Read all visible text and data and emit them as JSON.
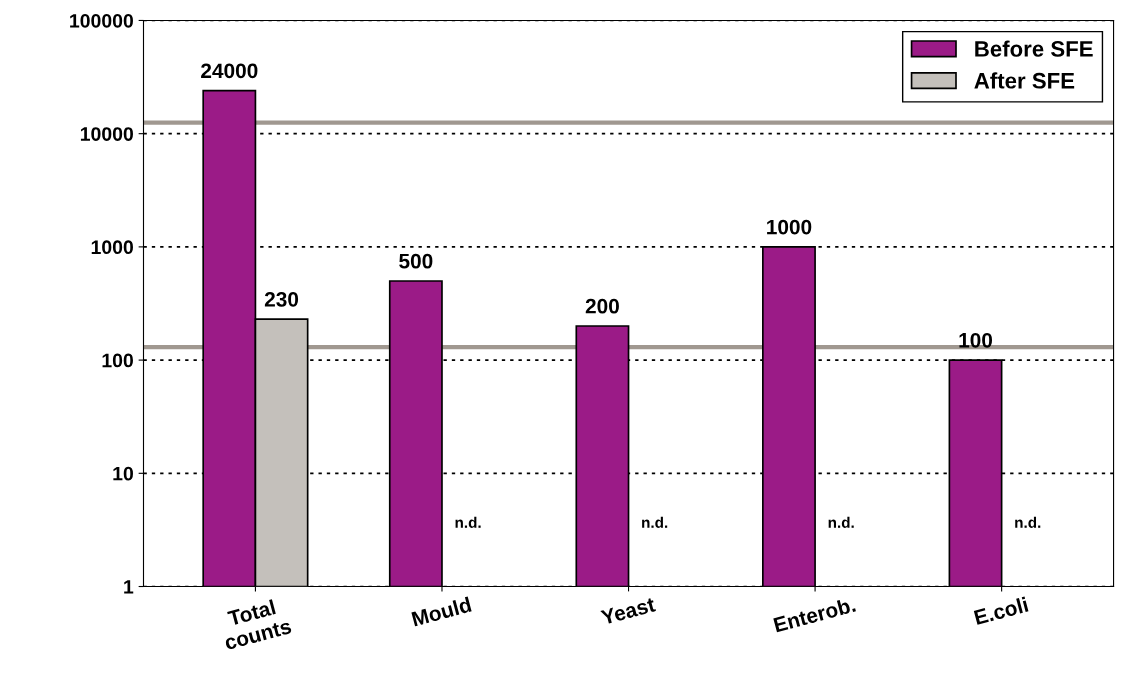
{
  "chart_data": {
    "type": "bar",
    "categories": [
      "Total\ncounts",
      "Mould",
      "Yeast",
      "Enterob.",
      "E.coli"
    ],
    "series": [
      {
        "name": "Before SFE",
        "color": "#9b1b87",
        "values": [
          24000,
          500,
          200,
          1000,
          100
        ],
        "value_labels": [
          "24000",
          "500",
          "200",
          "1000",
          "100"
        ]
      },
      {
        "name": "After SFE",
        "color": "#c4c0bb",
        "values": [
          230,
          null,
          null,
          null,
          null
        ],
        "value_labels": [
          "230",
          "n.d.",
          "n.d.",
          "n.d.",
          "n.d."
        ]
      }
    ],
    "log": "y",
    "ylim": [
      1,
      100000
    ],
    "yticks": [
      1,
      10,
      100,
      1000,
      10000,
      100000
    ],
    "grid": "y",
    "legend": "top right",
    "ref_lines": [
      {
        "axis": "y",
        "value": 130,
        "color": "#a09890"
      },
      {
        "axis": "y",
        "value": 12500,
        "color": "#a09890"
      }
    ]
  }
}
